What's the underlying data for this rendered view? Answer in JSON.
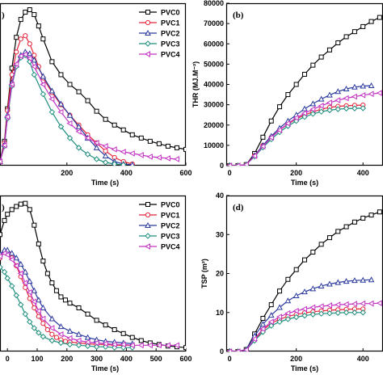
{
  "chart_data": [
    {
      "panel": "a",
      "type": "line",
      "xlabel": "Time (s)",
      "ylabel": "",
      "xlim": [
        -25,
        600
      ],
      "ylim": [
        0,
        200
      ],
      "xticks": [
        200,
        400,
        600
      ],
      "yticks": [],
      "legend": "top-right",
      "series": [
        {
          "name": "PVC0",
          "color": "#000000",
          "marker": "square",
          "x": [
            -25,
            -10,
            0,
            15,
            30,
            45,
            60,
            75,
            90,
            105,
            120,
            150,
            180,
            210,
            240,
            270,
            300,
            330,
            360,
            390,
            420,
            450,
            480,
            510,
            540,
            570,
            600
          ],
          "y": [
            5,
            30,
            70,
            120,
            158,
            180,
            189,
            192,
            186,
            172,
            156,
            128,
            112,
            100,
            91,
            80,
            67,
            57,
            50,
            44,
            38,
            34,
            30,
            27,
            24,
            22,
            20
          ]
        },
        {
          "name": "PVC1",
          "color": "#e3243b",
          "marker": "circle",
          "x": [
            -25,
            -10,
            0,
            15,
            30,
            45,
            60,
            75,
            90,
            105,
            120,
            150,
            180,
            210,
            240,
            270,
            300,
            330,
            360,
            390,
            420
          ],
          "y": [
            5,
            28,
            68,
            112,
            140,
            156,
            160,
            150,
            136,
            122,
            108,
            90,
            75,
            62,
            50,
            38,
            28,
            18,
            10,
            5,
            2
          ]
        },
        {
          "name": "PVC2",
          "color": "#2b3a9e",
          "marker": "triangle",
          "x": [
            -25,
            -10,
            0,
            15,
            30,
            45,
            60,
            75,
            90,
            120,
            150,
            180,
            210,
            240,
            270,
            300,
            330,
            360,
            390,
            420
          ],
          "y": [
            5,
            26,
            62,
            102,
            124,
            136,
            140,
            138,
            130,
            110,
            92,
            76,
            62,
            48,
            34,
            22,
            12,
            5,
            2,
            1
          ]
        },
        {
          "name": "PVC3",
          "color": "#1f8f7e",
          "marker": "diamond",
          "x": [
            -25,
            -10,
            0,
            15,
            30,
            45,
            60,
            75,
            90,
            120,
            150,
            180,
            210,
            240,
            270,
            300,
            330,
            360,
            390
          ],
          "y": [
            5,
            24,
            58,
            98,
            122,
            133,
            136,
            128,
            112,
            88,
            66,
            48,
            34,
            22,
            14,
            8,
            4,
            2,
            1
          ]
        },
        {
          "name": "PVC4",
          "color": "#c331c3",
          "marker": "triangle-left",
          "x": [
            -25,
            -10,
            0,
            15,
            30,
            45,
            60,
            75,
            90,
            120,
            150,
            180,
            210,
            240,
            270,
            300,
            330,
            360,
            390,
            420,
            450,
            480,
            510,
            540,
            570
          ],
          "y": [
            5,
            25,
            60,
            100,
            125,
            135,
            137,
            132,
            122,
            100,
            82,
            66,
            52,
            42,
            34,
            28,
            24,
            20,
            17,
            15,
            13,
            11,
            10,
            9,
            8
          ]
        }
      ]
    },
    {
      "panel": "b",
      "type": "line",
      "xlabel": "Time (s)",
      "ylabel": "THR (MJ.M⁻²)",
      "xlim": [
        -10,
        460
      ],
      "ylim": [
        0,
        80000
      ],
      "xticks": [
        0,
        200,
        400
      ],
      "yticks": [
        0,
        10000,
        20000,
        30000,
        40000,
        50000,
        60000,
        70000,
        80000
      ],
      "legend": "none",
      "series": [
        {
          "name": "PVC0",
          "color": "#000000",
          "marker": "square",
          "x": [
            0,
            25,
            50,
            75,
            100,
            125,
            150,
            175,
            200,
            225,
            250,
            275,
            300,
            325,
            350,
            375,
            400,
            425,
            450
          ],
          "y": [
            0,
            0,
            500,
            6000,
            14000,
            22000,
            29000,
            35000,
            40000,
            45000,
            49500,
            53500,
            57000,
            60500,
            63500,
            66000,
            68500,
            71000,
            73000
          ]
        },
        {
          "name": "PVC1",
          "color": "#e3243b",
          "marker": "circle",
          "x": [
            0,
            25,
            50,
            75,
            100,
            125,
            150,
            175,
            200,
            225,
            250,
            275,
            300,
            325,
            350,
            375,
            400
          ],
          "y": [
            0,
            0,
            500,
            5000,
            10000,
            14000,
            17500,
            20500,
            23000,
            25000,
            26500,
            27800,
            28700,
            29200,
            29500,
            29700,
            29800
          ]
        },
        {
          "name": "PVC2",
          "color": "#2b3a9e",
          "marker": "triangle",
          "x": [
            0,
            25,
            50,
            75,
            100,
            125,
            150,
            175,
            200,
            225,
            250,
            275,
            300,
            325,
            350,
            375,
            400,
            425
          ],
          "y": [
            0,
            0,
            500,
            5000,
            10000,
            14500,
            18500,
            22000,
            25000,
            28000,
            30500,
            32800,
            34800,
            36500,
            37800,
            38700,
            39200,
            39400
          ]
        },
        {
          "name": "PVC3",
          "color": "#1f8f7e",
          "marker": "diamond",
          "x": [
            0,
            25,
            50,
            75,
            100,
            125,
            150,
            175,
            200,
            225,
            250,
            275,
            300,
            325,
            350,
            375,
            400
          ],
          "y": [
            0,
            0,
            500,
            4500,
            9000,
            13000,
            16500,
            19500,
            22000,
            24000,
            25500,
            26600,
            27300,
            27800,
            28100,
            28200,
            28300
          ]
        },
        {
          "name": "PVC4",
          "color": "#c331c3",
          "marker": "triangle-left",
          "x": [
            0,
            25,
            50,
            75,
            100,
            125,
            150,
            175,
            200,
            225,
            250,
            275,
            300,
            325,
            350,
            375,
            400,
            425,
            450
          ],
          "y": [
            0,
            0,
            500,
            4800,
            9500,
            13800,
            17500,
            20800,
            23500,
            25800,
            27800,
            29500,
            31000,
            32200,
            33200,
            34000,
            34700,
            35300,
            35800
          ]
        }
      ]
    },
    {
      "panel": "c",
      "type": "line",
      "xlabel": "Time (s)",
      "ylabel": "",
      "xlim": [
        -25,
        600
      ],
      "ylim": [
        0,
        200
      ],
      "xticks": [
        0,
        100,
        200,
        300,
        400,
        500,
        600
      ],
      "yticks": [],
      "legend": "top-right",
      "series": [
        {
          "name": "PVC0",
          "color": "#000000",
          "marker": "square",
          "x": [
            -25,
            -10,
            0,
            15,
            30,
            45,
            60,
            75,
            90,
            105,
            120,
            135,
            150,
            165,
            180,
            195,
            210,
            240,
            270,
            300,
            330,
            360,
            390,
            420,
            450,
            480,
            510,
            540,
            570,
            600
          ],
          "y": [
            150,
            168,
            176,
            182,
            186,
            189,
            190,
            182,
            162,
            138,
            116,
            100,
            88,
            78,
            70,
            66,
            62,
            56,
            48,
            40,
            34,
            28,
            23,
            18,
            14,
            11,
            9,
            7,
            6,
            5
          ]
        },
        {
          "name": "PVC1",
          "color": "#e3243b",
          "marker": "circle",
          "x": [
            -25,
            -10,
            0,
            15,
            30,
            45,
            60,
            75,
            90,
            105,
            120,
            135,
            150,
            165,
            180,
            195,
            210,
            240,
            270,
            300,
            330,
            360,
            390,
            420
          ],
          "y": [
            120,
            128,
            126,
            120,
            110,
            96,
            82,
            68,
            56,
            45,
            36,
            28,
            22,
            18,
            15,
            13,
            12,
            11,
            10,
            9,
            9,
            8,
            8,
            8
          ]
        },
        {
          "name": "PVC2",
          "color": "#2b3a9e",
          "marker": "triangle",
          "x": [
            -25,
            -10,
            0,
            15,
            30,
            45,
            60,
            75,
            90,
            105,
            120,
            150,
            180,
            210,
            240,
            270,
            300,
            330,
            360,
            390,
            420
          ],
          "y": [
            125,
            130,
            130,
            126,
            120,
            112,
            102,
            90,
            78,
            66,
            56,
            42,
            32,
            26,
            22,
            18,
            15,
            13,
            12,
            11,
            10
          ]
        },
        {
          "name": "PVC3",
          "color": "#1f8f7e",
          "marker": "diamond",
          "x": [
            -25,
            -10,
            0,
            15,
            30,
            45,
            60,
            75,
            90,
            105,
            120,
            150,
            180,
            210,
            240,
            270,
            300,
            330,
            360,
            390,
            420
          ],
          "y": [
            108,
            102,
            94,
            84,
            72,
            60,
            48,
            38,
            30,
            24,
            19,
            14,
            11,
            9,
            8,
            7,
            6,
            6,
            5,
            5,
            5
          ]
        },
        {
          "name": "PVC4",
          "color": "#c331c3",
          "marker": "triangle-left",
          "x": [
            -25,
            -10,
            0,
            15,
            30,
            45,
            60,
            75,
            90,
            105,
            120,
            150,
            180,
            210,
            240,
            270,
            300,
            330,
            360,
            390,
            420,
            450,
            480,
            510,
            540,
            570
          ],
          "y": [
            122,
            126,
            124,
            118,
            110,
            100,
            88,
            76,
            64,
            52,
            42,
            30,
            22,
            17,
            14,
            12,
            11,
            10,
            9,
            9,
            8,
            8,
            8,
            8,
            8,
            8
          ]
        }
      ]
    },
    {
      "panel": "d",
      "type": "line",
      "xlabel": "Time (s)",
      "ylabel": "TSP (m²)",
      "xlim": [
        -10,
        460
      ],
      "ylim": [
        0,
        40
      ],
      "xticks": [
        0,
        200,
        400
      ],
      "yticks": [
        0,
        10,
        20,
        30,
        40
      ],
      "legend": "none",
      "series": [
        {
          "name": "PVC0",
          "color": "#000000",
          "marker": "square",
          "x": [
            0,
            25,
            50,
            75,
            100,
            125,
            150,
            175,
            200,
            225,
            250,
            275,
            300,
            325,
            350,
            375,
            400,
            425,
            450
          ],
          "y": [
            0,
            0,
            0.5,
            4.5,
            8.5,
            12,
            15.5,
            18.5,
            21,
            23.5,
            25.5,
            27.5,
            29.2,
            30.8,
            32,
            33.2,
            34.2,
            35,
            35.8
          ]
        },
        {
          "name": "PVC1",
          "color": "#e3243b",
          "marker": "circle",
          "x": [
            0,
            25,
            50,
            75,
            100,
            125,
            150,
            175,
            200,
            225,
            250,
            275,
            300,
            325,
            350,
            375,
            400
          ],
          "y": [
            0,
            0,
            0.4,
            3,
            5.5,
            7.2,
            8.3,
            9,
            9.5,
            9.9,
            10.2,
            10.4,
            10.6,
            10.7,
            10.8,
            10.9,
            10.9
          ]
        },
        {
          "name": "PVC2",
          "color": "#2b3a9e",
          "marker": "triangle",
          "x": [
            0,
            25,
            50,
            75,
            100,
            125,
            150,
            175,
            200,
            225,
            250,
            275,
            300,
            325,
            350,
            375,
            400,
            425
          ],
          "y": [
            0,
            0,
            0.5,
            4,
            7,
            9.3,
            11.3,
            13,
            14.3,
            15.3,
            16.1,
            16.8,
            17.3,
            17.7,
            18,
            18.2,
            18.3,
            18.4
          ]
        },
        {
          "name": "PVC3",
          "color": "#1f8f7e",
          "marker": "diamond",
          "x": [
            0,
            25,
            50,
            75,
            100,
            125,
            150,
            175,
            200,
            225,
            250,
            275,
            300,
            325,
            350,
            375,
            400
          ],
          "y": [
            0,
            0,
            0.4,
            2.8,
            5,
            6.6,
            7.6,
            8.3,
            8.8,
            9.2,
            9.5,
            9.7,
            9.8,
            9.9,
            10,
            10,
            10
          ]
        },
        {
          "name": "PVC4",
          "color": "#c331c3",
          "marker": "triangle-left",
          "x": [
            0,
            25,
            50,
            75,
            100,
            125,
            150,
            175,
            200,
            225,
            250,
            275,
            300,
            325,
            350,
            375,
            400,
            425,
            450
          ],
          "y": [
            0,
            0,
            0.4,
            3.2,
            5.8,
            7.6,
            8.9,
            9.8,
            10.4,
            10.9,
            11.3,
            11.6,
            11.8,
            12,
            12.1,
            12.2,
            12.3,
            12.3,
            12.4
          ]
        }
      ]
    }
  ]
}
